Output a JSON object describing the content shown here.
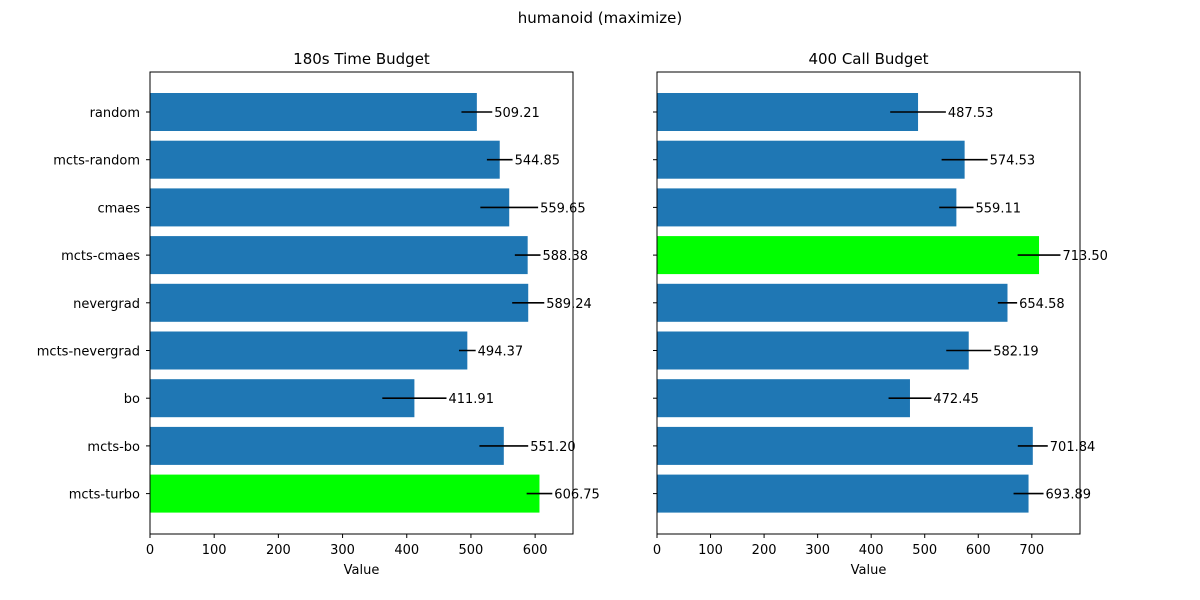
{
  "figure": {
    "suptitle": "humanoid (maximize)"
  },
  "chart_data": [
    {
      "type": "bar",
      "orientation": "horizontal",
      "title": "180s Time Budget",
      "xlabel": "Value",
      "ylabel": "",
      "xlim": [
        0,
        659
      ],
      "xticks": [
        0,
        100,
        200,
        300,
        400,
        500,
        600
      ],
      "categories": [
        "random",
        "mcts-random",
        "cmaes",
        "mcts-cmaes",
        "nevergrad",
        "mcts-nevergrad",
        "bo",
        "mcts-bo",
        "mcts-turbo"
      ],
      "values": [
        509.21,
        544.85,
        559.65,
        588.38,
        589.24,
        494.37,
        411.91,
        551.2,
        606.75
      ],
      "value_labels": [
        "509.21",
        "544.85",
        "559.65",
        "588.38",
        "589.24",
        "494.37",
        "411.91",
        "551.20",
        "606.75"
      ],
      "errors": [
        24,
        20,
        45,
        20,
        25,
        13,
        50,
        38,
        20
      ],
      "highlight_index": 8,
      "bar_color": "#1f77b4",
      "highlight_color": "#00ff00",
      "grid": false
    },
    {
      "type": "bar",
      "orientation": "horizontal",
      "title": "400 Call Budget",
      "xlabel": "Value",
      "ylabel": "",
      "xlim": [
        0,
        790
      ],
      "xticks": [
        0,
        100,
        200,
        300,
        400,
        500,
        600,
        700
      ],
      "categories": [
        "random",
        "mcts-random",
        "cmaes",
        "mcts-cmaes",
        "nevergrad",
        "mcts-nevergrad",
        "bo",
        "mcts-bo",
        "mcts-turbo"
      ],
      "values": [
        487.53,
        574.53,
        559.11,
        713.5,
        654.58,
        582.19,
        472.45,
        701.84,
        693.89
      ],
      "value_labels": [
        "487.53",
        "574.53",
        "559.11",
        "713.50",
        "654.58",
        "582.19",
        "472.45",
        "701.84",
        "693.89"
      ],
      "errors": [
        52,
        43,
        32,
        40,
        18,
        42,
        40,
        28,
        28
      ],
      "highlight_index": 3,
      "bar_color": "#1f77b4",
      "highlight_color": "#00ff00",
      "grid": false
    }
  ]
}
